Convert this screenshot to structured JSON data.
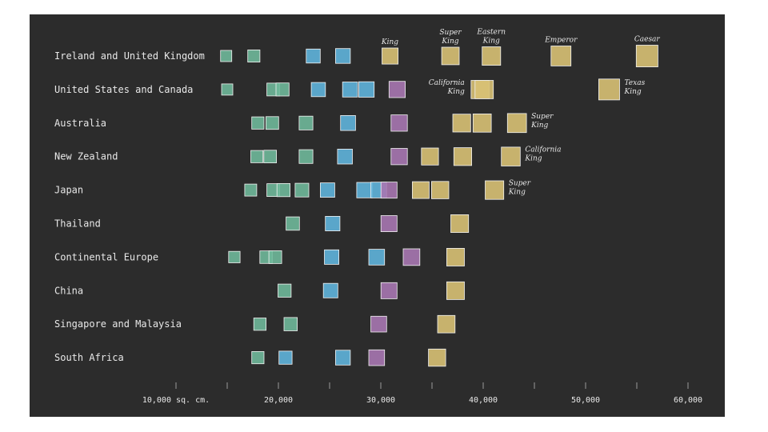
{
  "chart_data": {
    "type": "scatter",
    "title": "",
    "xlabel": "",
    "ylabel": "",
    "xlim": [
      5000,
      62000
    ],
    "x_ticks": [
      10000,
      15000,
      20000,
      25000,
      30000,
      35000,
      40000,
      45000,
      50000,
      55000,
      60000
    ],
    "x_tick_labels": [
      {
        "value": 10000,
        "label": "10,000 sq. cm."
      },
      {
        "value": 20000,
        "label": "20,000"
      },
      {
        "value": 30000,
        "label": "30,000"
      },
      {
        "value": 40000,
        "label": "40,000"
      },
      {
        "value": 50000,
        "label": "50,000"
      },
      {
        "value": 60000,
        "label": "60,000"
      }
    ],
    "size_category_colors": {
      "small": "#6fb89a",
      "medium": "#5fb4db",
      "large": "#a777b1",
      "king": "#d8c174"
    },
    "rows": [
      {
        "label": "Ireland and United Kingdom",
        "beds": [
          {
            "area": 14900,
            "cat": "small"
          },
          {
            "area": 17600,
            "cat": "small"
          },
          {
            "area": 23400,
            "cat": "medium"
          },
          {
            "area": 26300,
            "cat": "medium"
          },
          {
            "area": 30900,
            "cat": "king",
            "note": [
              "King"
            ]
          },
          {
            "area": 36800,
            "cat": "king",
            "note": [
              "Super",
              "King"
            ]
          },
          {
            "area": 40800,
            "cat": "king",
            "note": [
              "Eastern",
              "King"
            ]
          },
          {
            "area": 47600,
            "cat": "king",
            "note": [
              "Emperor"
            ]
          },
          {
            "area": 56000,
            "cat": "king",
            "note": [
              "Caesar"
            ]
          }
        ]
      },
      {
        "label": "United States and Canada",
        "beds": [
          {
            "area": 15000,
            "cat": "small"
          },
          {
            "area": 19500,
            "cat": "small"
          },
          {
            "area": 20400,
            "cat": "small"
          },
          {
            "area": 23900,
            "cat": "medium"
          },
          {
            "area": 27000,
            "cat": "medium"
          },
          {
            "area": 28600,
            "cat": "medium"
          },
          {
            "area": 31600,
            "cat": "large"
          },
          {
            "area": 39700,
            "cat": "king",
            "note": [
              "California",
              "King"
            ],
            "note_side": "left"
          },
          {
            "area": 40100,
            "cat": "king"
          },
          {
            "area": 52300,
            "cat": "king",
            "note": [
              "Texas",
              "King"
            ]
          }
        ]
      },
      {
        "label": "Australia",
        "beds": [
          {
            "area": 18000,
            "cat": "small"
          },
          {
            "area": 19400,
            "cat": "small"
          },
          {
            "area": 22700,
            "cat": "small"
          },
          {
            "area": 26800,
            "cat": "medium"
          },
          {
            "area": 31800,
            "cat": "large"
          },
          {
            "area": 37900,
            "cat": "king"
          },
          {
            "area": 39900,
            "cat": "king"
          },
          {
            "area": 43300,
            "cat": "king",
            "note": [
              "Super",
              "King"
            ]
          }
        ]
      },
      {
        "label": "New Zealand",
        "beds": [
          {
            "area": 17900,
            "cat": "small"
          },
          {
            "area": 19200,
            "cat": "small"
          },
          {
            "area": 22700,
            "cat": "small"
          },
          {
            "area": 26500,
            "cat": "medium"
          },
          {
            "area": 31800,
            "cat": "large"
          },
          {
            "area": 34800,
            "cat": "king"
          },
          {
            "area": 38000,
            "cat": "king"
          },
          {
            "area": 42700,
            "cat": "king",
            "note": [
              "California",
              "King"
            ]
          }
        ]
      },
      {
        "label": "Japan",
        "beds": [
          {
            "area": 17300,
            "cat": "small"
          },
          {
            "area": 19500,
            "cat": "small"
          },
          {
            "area": 20500,
            "cat": "small"
          },
          {
            "area": 22300,
            "cat": "small"
          },
          {
            "area": 24800,
            "cat": "medium"
          },
          {
            "area": 28400,
            "cat": "medium"
          },
          {
            "area": 29800,
            "cat": "medium"
          },
          {
            "area": 30800,
            "cat": "large"
          },
          {
            "area": 33900,
            "cat": "king"
          },
          {
            "area": 35800,
            "cat": "king"
          },
          {
            "area": 41100,
            "cat": "king",
            "note": [
              "Super",
              "King"
            ]
          }
        ]
      },
      {
        "label": "Thailand",
        "beds": [
          {
            "area": 21400,
            "cat": "small"
          },
          {
            "area": 25300,
            "cat": "medium"
          },
          {
            "area": 30800,
            "cat": "large"
          },
          {
            "area": 37700,
            "cat": "king"
          }
        ]
      },
      {
        "label": "Continental Europe",
        "beds": [
          {
            "area": 15700,
            "cat": "small"
          },
          {
            "area": 18800,
            "cat": "small"
          },
          {
            "area": 19700,
            "cat": "small"
          },
          {
            "area": 25200,
            "cat": "medium"
          },
          {
            "area": 29600,
            "cat": "medium"
          },
          {
            "area": 33000,
            "cat": "large"
          },
          {
            "area": 37300,
            "cat": "king"
          }
        ]
      },
      {
        "label": "China",
        "beds": [
          {
            "area": 20600,
            "cat": "small"
          },
          {
            "area": 25100,
            "cat": "medium"
          },
          {
            "area": 30800,
            "cat": "large"
          },
          {
            "area": 37300,
            "cat": "king"
          }
        ]
      },
      {
        "label": "Singapore and Malaysia",
        "beds": [
          {
            "area": 18200,
            "cat": "small"
          },
          {
            "area": 21200,
            "cat": "small"
          },
          {
            "area": 29800,
            "cat": "large"
          },
          {
            "area": 36400,
            "cat": "king"
          }
        ]
      },
      {
        "label": "South Africa",
        "beds": [
          {
            "area": 18000,
            "cat": "small"
          },
          {
            "area": 20700,
            "cat": "medium"
          },
          {
            "area": 26300,
            "cat": "medium"
          },
          {
            "area": 29600,
            "cat": "large"
          },
          {
            "area": 35500,
            "cat": "king"
          }
        ]
      }
    ]
  }
}
